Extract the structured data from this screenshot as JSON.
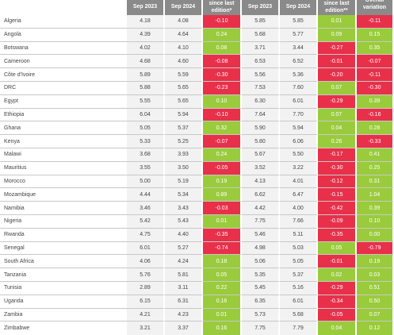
{
  "table": {
    "headers": [
      {
        "label": "",
        "clipped": false
      },
      {
        "label": "Sep 2023",
        "clipped": false
      },
      {
        "label": "Sep 2024",
        "clipped": false
      },
      {
        "label": "since last edition*",
        "clipped": false
      },
      {
        "label": "Sep 2023",
        "clipped": false
      },
      {
        "label": "Sep 2024",
        "clipped": false
      },
      {
        "label": "since last edition**",
        "clipped": false
      },
      {
        "label": "Overall variation",
        "clipped": true
      }
    ],
    "rows": [
      {
        "country": "Algeria",
        "v1": "4.18",
        "v2": "4.08",
        "d1": "-0.10",
        "v3": "5.85",
        "v4": "5.85",
        "d2": "0.01",
        "d3": "-0.11"
      },
      {
        "country": "Angola",
        "v1": "4.39",
        "v2": "4.64",
        "d1": "0.24",
        "v3": "5.68",
        "v4": "5.77",
        "d2": "0.09",
        "d3": "0.15"
      },
      {
        "country": "Botswana",
        "v1": "4.02",
        "v2": "4.10",
        "d1": "0.08",
        "v3": "3.71",
        "v4": "3.44",
        "d2": "-0.27",
        "d3": "0.35"
      },
      {
        "country": "Cameroon",
        "v1": "4.68",
        "v2": "4.60",
        "d1": "-0.08",
        "v3": "6.53",
        "v4": "6.52",
        "d2": "-0.01",
        "d3": "-0.07"
      },
      {
        "country": "Côte d'Ivoire",
        "v1": "5.89",
        "v2": "5.59",
        "d1": "-0.30",
        "v3": "5.56",
        "v4": "5.36",
        "d2": "-0.20",
        "d3": "-0.11"
      },
      {
        "country": "DRC",
        "v1": "5.88",
        "v2": "5.65",
        "d1": "-0.23",
        "v3": "7.53",
        "v4": "7.60",
        "d2": "0.07",
        "d3": "-0.30"
      },
      {
        "country": "Egypt",
        "v1": "5.55",
        "v2": "5.65",
        "d1": "0.10",
        "v3": "6.30",
        "v4": "6.01",
        "d2": "-0.29",
        "d3": "0.39"
      },
      {
        "country": "Ethiopia",
        "v1": "6.04",
        "v2": "5.94",
        "d1": "-0.10",
        "v3": "7.64",
        "v4": "7.70",
        "d2": "0.07",
        "d3": "-0.16"
      },
      {
        "country": "Ghana",
        "v1": "5.05",
        "v2": "5.37",
        "d1": "0.32",
        "v3": "5.90",
        "v4": "5.94",
        "d2": "0.04",
        "d3": "0.28"
      },
      {
        "country": "Kenya",
        "v1": "5.33",
        "v2": "5.25",
        "d1": "-0.07",
        "v3": "5.80",
        "v4": "6.06",
        "d2": "0.26",
        "d3": "-0.33"
      },
      {
        "country": "Malawi",
        "v1": "3.68",
        "v2": "3.93",
        "d1": "0.24",
        "v3": "5.67",
        "v4": "5.50",
        "d2": "-0.17",
        "d3": "0.41"
      },
      {
        "country": "Mauritius",
        "v1": "3.55",
        "v2": "3.50",
        "d1": "-0.05",
        "v3": "3.52",
        "v4": "3.22",
        "d2": "-0.30",
        "d3": "0.25"
      },
      {
        "country": "Morocco",
        "v1": "5.00",
        "v2": "5.19",
        "d1": "0.19",
        "v3": "4.13",
        "v4": "4.01",
        "d2": "-0.12",
        "d3": "0.31"
      },
      {
        "country": "Mozambique",
        "v1": "4.44",
        "v2": "5.34",
        "d1": "0.89",
        "v3": "6.62",
        "v4": "6.47",
        "d2": "-0.15",
        "d3": "1.04"
      },
      {
        "country": "Namibia",
        "v1": "3.46",
        "v2": "3.43",
        "d1": "-0.03",
        "v3": "4.42",
        "v4": "4.00",
        "d2": "-0.42",
        "d3": "0.39"
      },
      {
        "country": "Nigeria",
        "v1": "5.42",
        "v2": "5.43",
        "d1": "0.01",
        "v3": "7.75",
        "v4": "7.66",
        "d2": "-0.09",
        "d3": "0.10"
      },
      {
        "country": "Rwanda",
        "v1": "4.75",
        "v2": "4.40",
        "d1": "-0.35",
        "v3": "5.46",
        "v4": "5.11",
        "d2": "-0.35",
        "d3": "0.00"
      },
      {
        "country": "Senegal",
        "v1": "6.01",
        "v2": "5.27",
        "d1": "-0.74",
        "v3": "4.98",
        "v4": "5.03",
        "d2": "0.05",
        "d3": "-0.79"
      },
      {
        "country": "South Africa",
        "v1": "4.06",
        "v2": "4.24",
        "d1": "0.18",
        "v3": "5.06",
        "v4": "5.05",
        "d2": "-0.01",
        "d3": "0.19"
      },
      {
        "country": "Tanzania",
        "v1": "5.76",
        "v2": "5.81",
        "d1": "0.05",
        "v3": "5.35",
        "v4": "5.37",
        "d2": "0.02",
        "d3": "0.03"
      },
      {
        "country": "Tunisia",
        "v1": "2.89",
        "v2": "3.11",
        "d1": "0.22",
        "v3": "5.45",
        "v4": "5.16",
        "d2": "-0.29",
        "d3": "0.51"
      },
      {
        "country": "Uganda",
        "v1": "6.15",
        "v2": "6.31",
        "d1": "0.16",
        "v3": "6.35",
        "v4": "6.01",
        "d2": "-0.34",
        "d3": "0.50"
      },
      {
        "country": "Zambia",
        "v1": "4.21",
        "v2": "4.23",
        "d1": "0.01",
        "v3": "5.73",
        "v4": "5.68",
        "d2": "-0.05",
        "d3": "0.07"
      },
      {
        "country": "Zimbabwe",
        "v1": "3.21",
        "v2": "3.37",
        "d1": "0.16",
        "v3": "7.75",
        "v4": "7.79",
        "d2": "0.04",
        "d3": "0.12"
      }
    ]
  },
  "colors": {
    "header_bg": "#8a8a8a",
    "positive": "#9acb3c",
    "negative": "#e8304a",
    "cell_bg": "#f2f2f2"
  }
}
